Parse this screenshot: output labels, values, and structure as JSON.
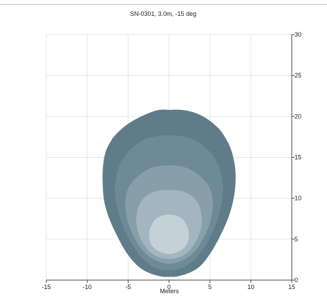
{
  "chart_data": {
    "type": "contour",
    "title": "SN-0301, 3.0m, -15 deg",
    "xlabel": "Meters",
    "ylabel": "",
    "xlim": [
      -15,
      15
    ],
    "ylim": [
      0,
      30
    ],
    "x_ticks": [
      -15,
      -10,
      -5,
      0,
      5,
      10,
      15
    ],
    "y_ticks": [
      0,
      5,
      10,
      15,
      20,
      25,
      30
    ],
    "y_axis_side": "right",
    "grid": true,
    "levels": [
      {
        "name": "",
        "color": "#607c88",
        "points": [
          [
            0,
            20.8
          ],
          [
            1.5,
            20.8
          ],
          [
            3,
            20.5
          ],
          [
            4.5,
            19.8
          ],
          [
            6,
            18.6
          ],
          [
            7,
            17.2
          ],
          [
            7.7,
            15.6
          ],
          [
            8.1,
            13.5
          ],
          [
            8.1,
            11.5
          ],
          [
            7.8,
            9.5
          ],
          [
            7.2,
            7.5
          ],
          [
            6.3,
            5.5
          ],
          [
            5.2,
            3.5
          ],
          [
            3.9,
            1.8
          ],
          [
            2.5,
            0.9
          ],
          [
            1,
            0.45
          ],
          [
            0,
            0.4
          ],
          [
            -1,
            0.45
          ],
          [
            -2.5,
            0.9
          ],
          [
            -3.9,
            1.8
          ],
          [
            -5.3,
            3.5
          ],
          [
            -6.4,
            5.5
          ],
          [
            -7.3,
            7.5
          ],
          [
            -7.9,
            9.5
          ],
          [
            -8.1,
            11.5
          ],
          [
            -8.1,
            13.5
          ],
          [
            -7.8,
            15.5
          ],
          [
            -7.1,
            17
          ],
          [
            -6.2,
            18.1
          ],
          [
            -5,
            19.1
          ],
          [
            -3.8,
            19.8
          ],
          [
            -2.5,
            20.4
          ],
          [
            -1.2,
            20.8
          ]
        ]
      },
      {
        "name": "",
        "color": "#6e8a97",
        "points": [
          [
            0,
            17.7
          ],
          [
            1.5,
            17.6
          ],
          [
            3,
            17.2
          ],
          [
            4.2,
            16.4
          ],
          [
            5.3,
            15.3
          ],
          [
            6.1,
            13.9
          ],
          [
            6.5,
            12.3
          ],
          [
            6.6,
            10.6
          ],
          [
            6.3,
            8.8
          ],
          [
            5.8,
            7
          ],
          [
            5,
            5.2
          ],
          [
            4.1,
            3.7
          ],
          [
            3,
            2.4
          ],
          [
            1.7,
            1.5
          ],
          [
            0.5,
            1.2
          ],
          [
            -0.5,
            1.2
          ],
          [
            -1.7,
            1.5
          ],
          [
            -3,
            2.4
          ],
          [
            -4.1,
            3.7
          ],
          [
            -5,
            5.2
          ],
          [
            -5.8,
            7
          ],
          [
            -6.3,
            8.8
          ],
          [
            -6.6,
            10.6
          ],
          [
            -6.5,
            12.3
          ],
          [
            -6.1,
            13.9
          ],
          [
            -5.3,
            15.3
          ],
          [
            -4.2,
            16.4
          ],
          [
            -3,
            17.2
          ],
          [
            -1.5,
            17.6
          ]
        ]
      },
      {
        "name": "",
        "color": "#889faa",
        "points": [
          [
            0,
            14
          ],
          [
            1.5,
            13.9
          ],
          [
            2.8,
            13.4
          ],
          [
            4,
            12.5
          ],
          [
            4.9,
            11.4
          ],
          [
            5.3,
            10
          ],
          [
            5.3,
            8.5
          ],
          [
            5,
            7
          ],
          [
            4.4,
            5.5
          ],
          [
            3.6,
            4.1
          ],
          [
            2.6,
            3
          ],
          [
            1.4,
            2.3
          ],
          [
            0.3,
            2
          ],
          [
            -0.3,
            2
          ],
          [
            -1.4,
            2.3
          ],
          [
            -2.6,
            3
          ],
          [
            -3.6,
            4.1
          ],
          [
            -4.4,
            5.5
          ],
          [
            -5,
            7
          ],
          [
            -5.3,
            8.5
          ],
          [
            -5.3,
            10
          ],
          [
            -4.9,
            11.4
          ],
          [
            -4,
            12.5
          ],
          [
            -2.8,
            13.4
          ],
          [
            -1.5,
            13.9
          ]
        ]
      },
      {
        "name": "",
        "color": "#a3b5be",
        "points": [
          [
            0,
            11
          ],
          [
            1.4,
            10.9
          ],
          [
            2.6,
            10.4
          ],
          [
            3.5,
            9.5
          ],
          [
            3.9,
            8.3
          ],
          [
            4,
            7
          ],
          [
            3.7,
            5.6
          ],
          [
            3.1,
            4.4
          ],
          [
            2.3,
            3.4
          ],
          [
            1.3,
            2.8
          ],
          [
            0.3,
            2.6
          ],
          [
            -0.3,
            2.6
          ],
          [
            -1.3,
            2.8
          ],
          [
            -2.3,
            3.4
          ],
          [
            -3.1,
            4.4
          ],
          [
            -3.7,
            5.6
          ],
          [
            -4,
            7
          ],
          [
            -3.9,
            8.3
          ],
          [
            -3.5,
            9.5
          ],
          [
            -2.6,
            10.4
          ],
          [
            -1.4,
            10.9
          ]
        ]
      },
      {
        "name": "",
        "color": "#c4d1d7",
        "points": [
          [
            0,
            8
          ],
          [
            0.8,
            7.9
          ],
          [
            1.6,
            7.5
          ],
          [
            2.1,
            6.8
          ],
          [
            2.4,
            6
          ],
          [
            2.4,
            5.1
          ],
          [
            2.2,
            4.4
          ],
          [
            1.7,
            3.8
          ],
          [
            1,
            3.4
          ],
          [
            0.3,
            3.2
          ],
          [
            -0.3,
            3.2
          ],
          [
            -1,
            3.4
          ],
          [
            -1.7,
            3.8
          ],
          [
            -2.2,
            4.4
          ],
          [
            -2.4,
            5.1
          ],
          [
            -2.4,
            6
          ],
          [
            -2.1,
            6.8
          ],
          [
            -1.6,
            7.5
          ],
          [
            -0.8,
            7.9
          ]
        ]
      }
    ]
  }
}
